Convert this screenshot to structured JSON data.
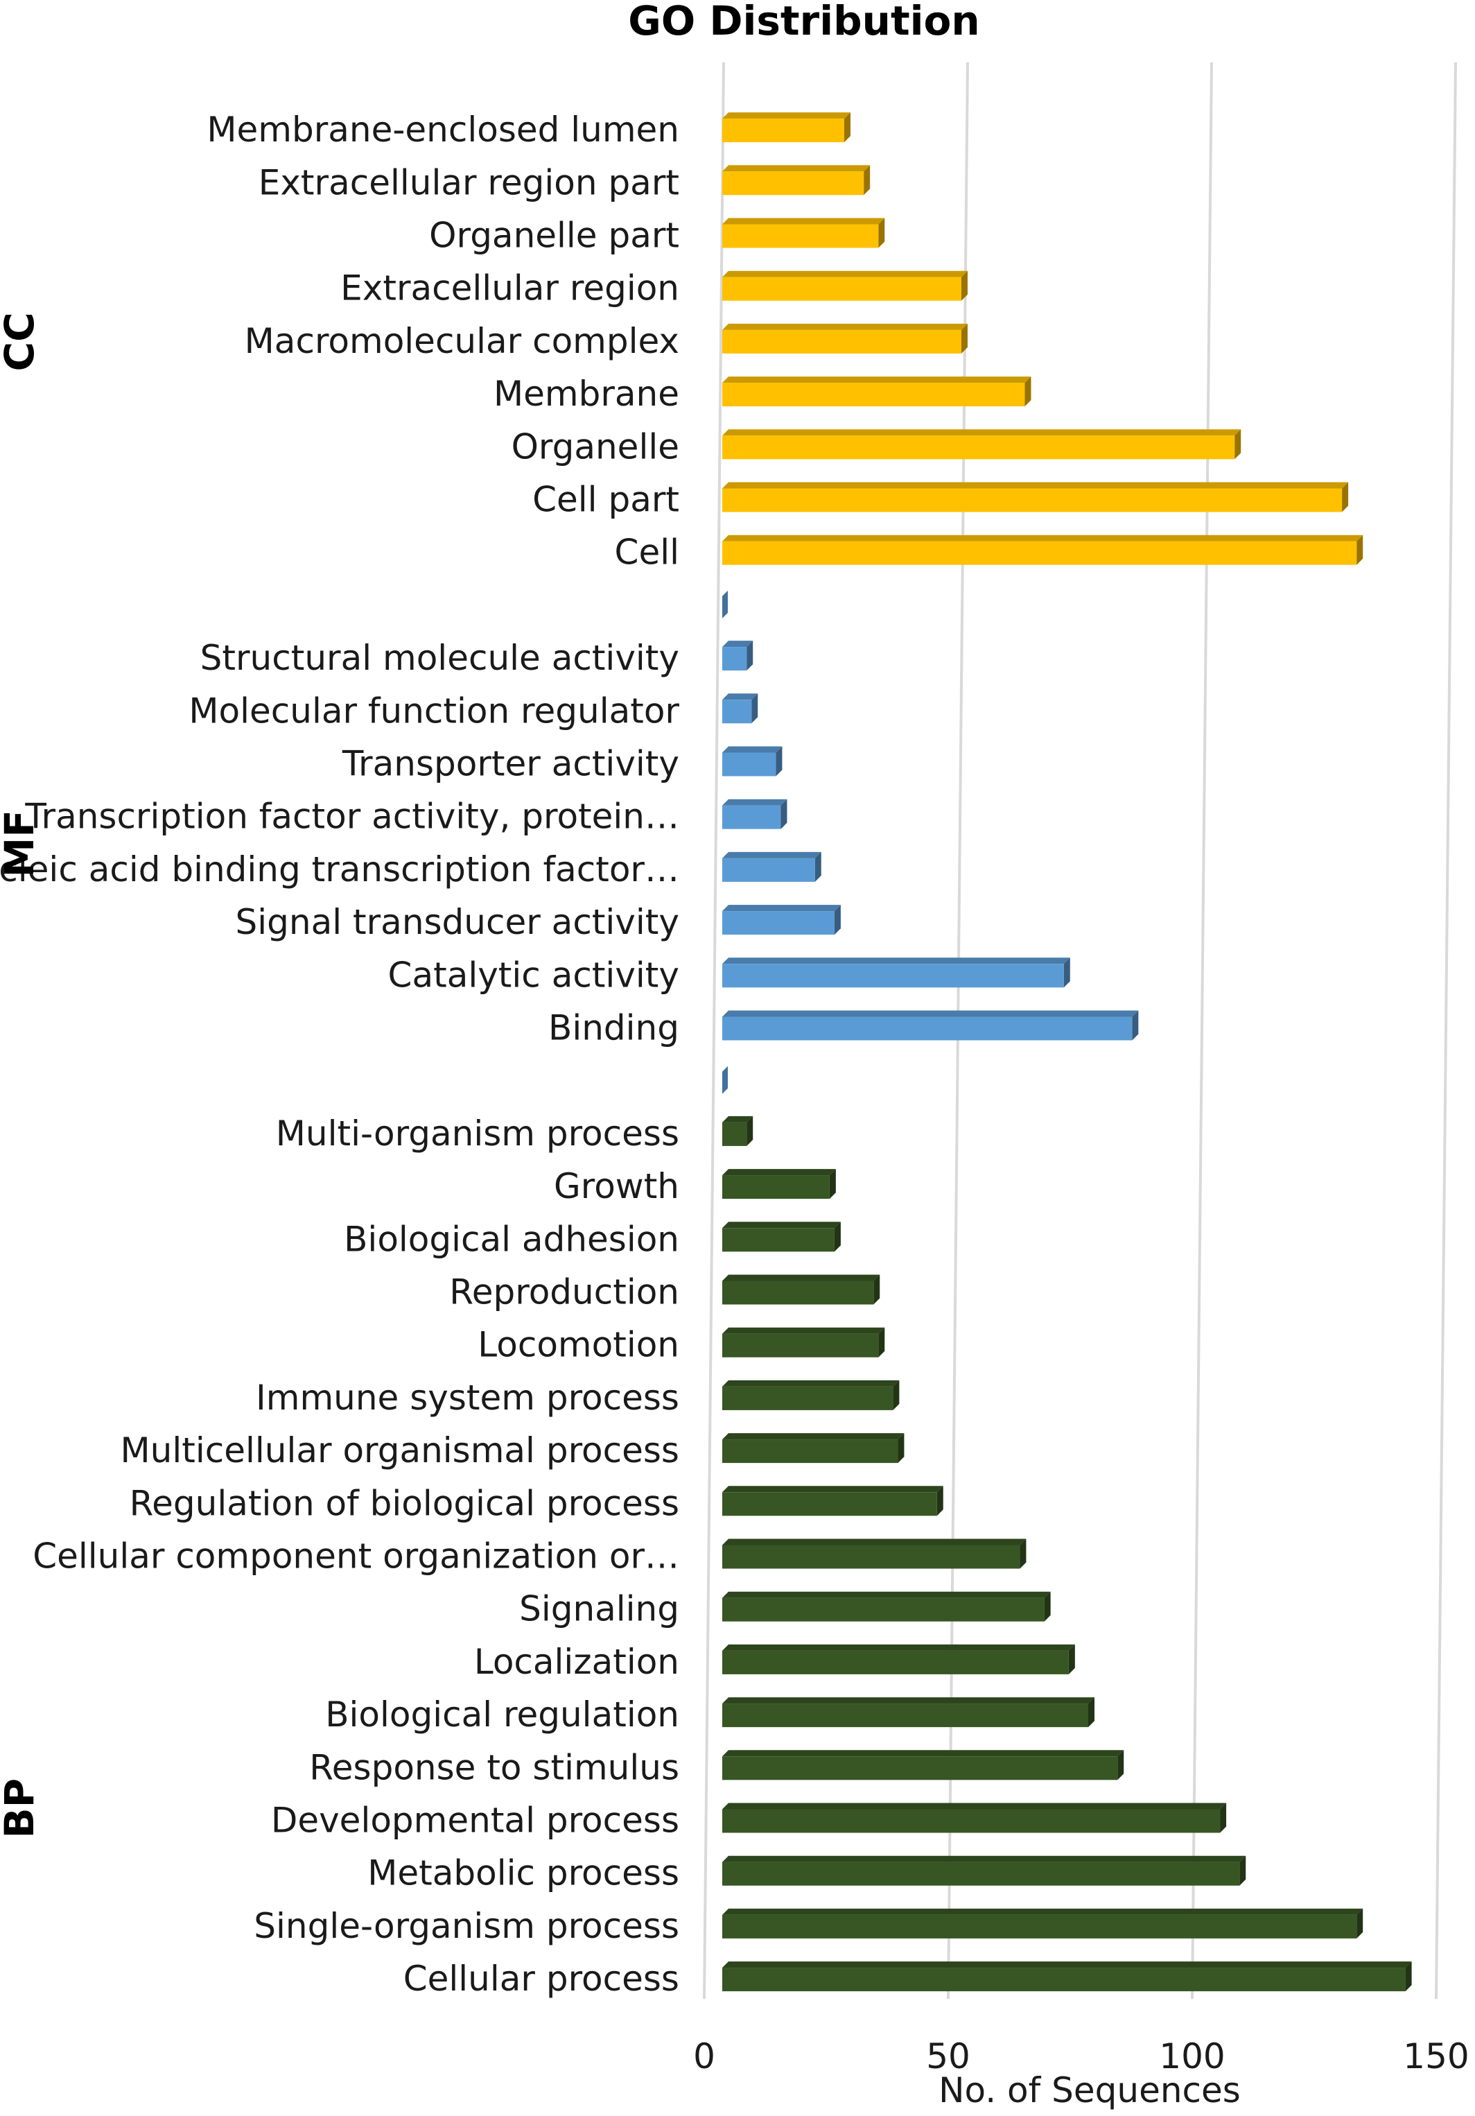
{
  "chart_data": {
    "type": "bar",
    "orientation": "horizontal",
    "title": "GO Distribution",
    "xlabel": "No. of Sequences",
    "xlim": [
      0,
      150
    ],
    "xticks": [
      0,
      50,
      100,
      150
    ],
    "grid": true,
    "groups": [
      {
        "name": "CC",
        "color": "#FFC000",
        "categories": [
          "Membrane-enclosed lumen",
          "Extracellular region part",
          "Organelle part",
          "Extracellular region",
          "Macromolecular complex",
          "Membrane",
          "Organelle",
          "Cell part",
          "Cell"
        ],
        "values": [
          25,
          29,
          32,
          49,
          49,
          62,
          105,
          127,
          130
        ]
      },
      {
        "name": "MF",
        "color": "#5B9BD5",
        "categories": [
          "Structural molecule activity",
          "Molecular function regulator",
          "Transporter activity",
          "Transcription factor activity, protein…",
          "Nucleic acid binding transcription factor…",
          "Signal transducer activity",
          "Catalytic activity",
          "Binding"
        ],
        "values": [
          5,
          6,
          11,
          12,
          19,
          23,
          70,
          84
        ]
      },
      {
        "name": "BP",
        "color": "#375623",
        "categories": [
          "Multi-organism process",
          "Growth",
          "Biological adhesion",
          "Reproduction",
          "Locomotion",
          "Immune system process",
          "Multicellular organismal process",
          "Regulation of biological process",
          "Cellular component organization or…",
          "Signaling",
          "Localization",
          "Biological regulation",
          "Response to stimulus",
          "Developmental process",
          "Metabolic process",
          "Single-organism process",
          "Cellular process"
        ],
        "values": [
          5,
          22,
          23,
          31,
          32,
          35,
          36,
          44,
          61,
          66,
          71,
          75,
          81,
          102,
          106,
          130,
          140
        ]
      }
    ]
  }
}
